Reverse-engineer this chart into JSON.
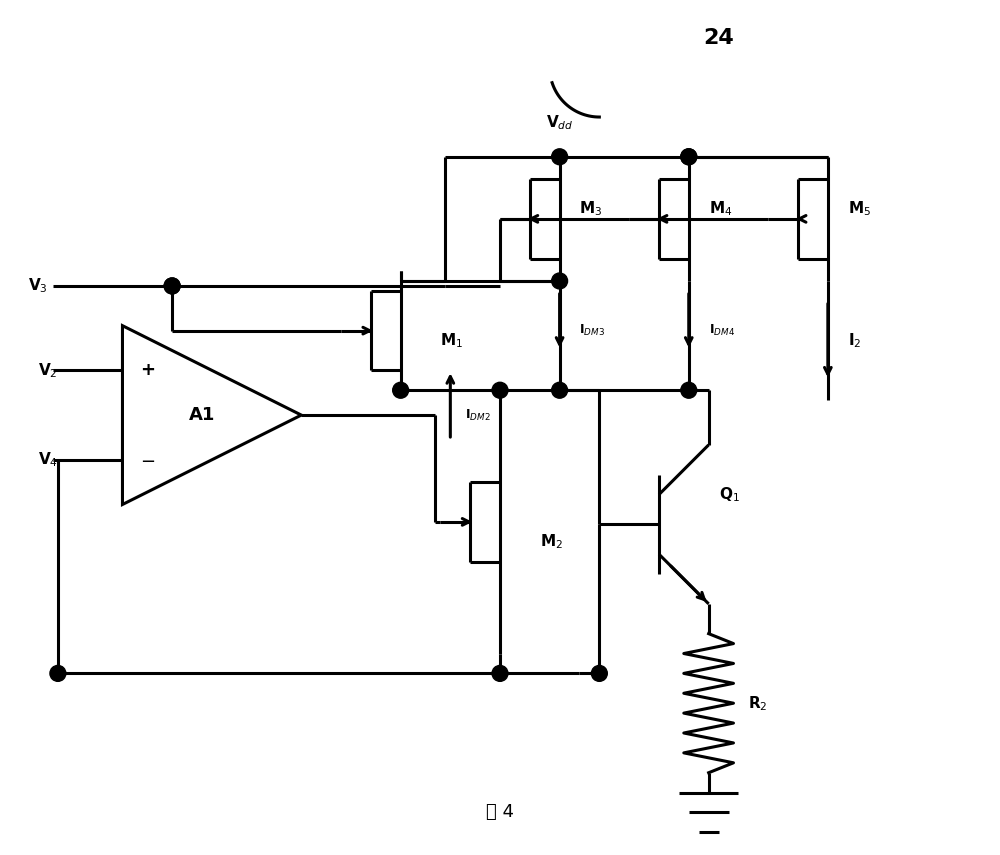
{
  "bg_color": "#ffffff",
  "line_color": "#000000",
  "lw": 2.2,
  "fig_width": 10.0,
  "fig_height": 8.55,
  "caption": "图 4",
  "label_24": "24"
}
